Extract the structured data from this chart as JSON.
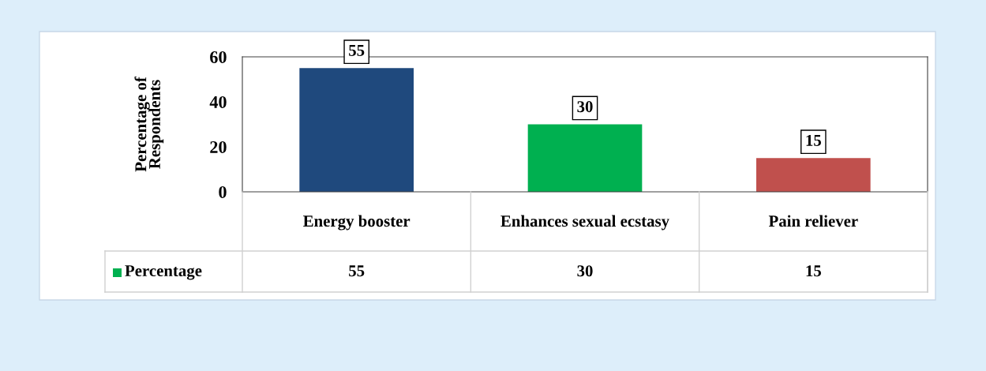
{
  "chart_data": {
    "type": "bar",
    "ylabel": "Percentage of Respondents",
    "categories": [
      "Energy booster",
      "Enhances sexual ecstasy",
      "Pain reliever"
    ],
    "series": [
      {
        "name": "Percentage",
        "color": "#00b050",
        "colors": [
          "#1f497d",
          "#00b050",
          "#c0504d"
        ],
        "values": [
          55,
          30,
          15
        ],
        "value_labels": [
          "55",
          "30",
          "15"
        ]
      }
    ],
    "ylim": [
      0,
      60
    ],
    "yticks": [
      0,
      20,
      40,
      60
    ],
    "annotations": [
      "55",
      "30",
      "15"
    ],
    "grid": false,
    "legend": "bottom left"
  }
}
